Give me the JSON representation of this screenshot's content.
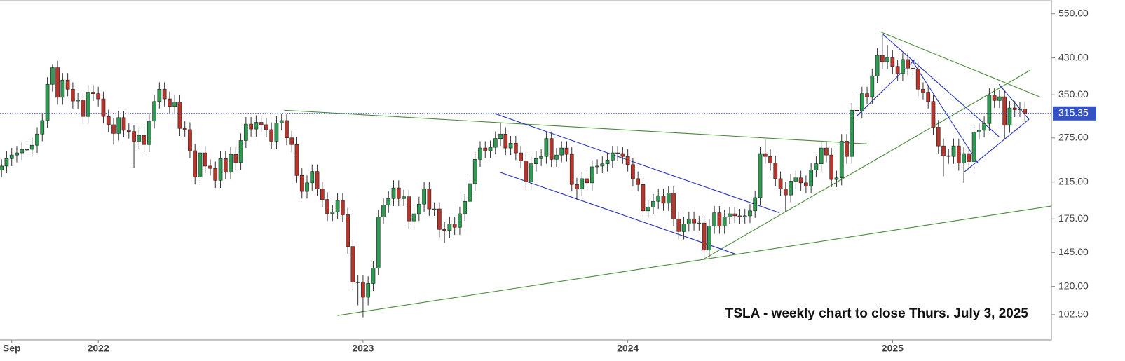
{
  "chart_data": {
    "type": "candlestick",
    "annotation": "TSLA - weekly chart to close Thurs. July 3, 2025",
    "log_scale": true,
    "grid": false,
    "up_color": "#2e9a52",
    "down_color": "#b8352c",
    "last_price": 315.35,
    "last_price_color": "#3452c4",
    "xlim": [
      -0.3,
      206.2
    ],
    "xticks": [
      {
        "value": 2,
        "label": "Sep"
      },
      {
        "value": 19,
        "label": "2022"
      },
      {
        "value": 71,
        "label": "2023"
      },
      {
        "value": 123,
        "label": "2024"
      },
      {
        "value": 175,
        "label": "2025"
      }
    ],
    "ylim": [
      89,
      594
    ],
    "yticks": [
      {
        "value": 102.5,
        "label": "102.50"
      },
      {
        "value": 120,
        "label": "120.00"
      },
      {
        "value": 145,
        "label": "145.00"
      },
      {
        "value": 175,
        "label": "175.00"
      },
      {
        "value": 215,
        "label": "215.00"
      },
      {
        "value": 275,
        "label": "275.00"
      },
      {
        "value": 350,
        "label": "350.00"
      },
      {
        "value": 430,
        "label": "430.00"
      },
      {
        "value": 550,
        "label": "550.00"
      }
    ],
    "ohlc": [
      [
        230,
        244,
        221,
        235
      ],
      [
        235,
        255,
        226,
        245
      ],
      [
        245,
        260,
        235,
        250
      ],
      [
        250,
        263,
        240,
        253
      ],
      [
        253,
        268,
        243,
        258
      ],
      [
        258,
        268,
        248,
        258
      ],
      [
        258,
        275,
        248,
        264
      ],
      [
        264,
        292,
        253,
        281
      ],
      [
        281,
        315,
        270,
        303
      ],
      [
        303,
        386,
        291,
        371
      ],
      [
        371,
        414,
        356,
        407
      ],
      [
        407,
        423,
        331,
        345
      ],
      [
        345,
        395,
        331,
        380
      ],
      [
        380,
        395,
        347,
        361
      ],
      [
        361,
        375,
        324,
        338
      ],
      [
        338,
        354,
        324,
        340
      ],
      [
        340,
        354,
        298,
        310
      ],
      [
        310,
        369,
        298,
        355
      ],
      [
        355,
        369,
        338,
        352
      ],
      [
        352,
        366,
        328,
        342
      ],
      [
        342,
        356,
        298,
        310
      ],
      [
        310,
        322,
        284,
        296
      ],
      [
        296,
        308,
        265,
        282
      ],
      [
        282,
        320,
        271,
        308
      ],
      [
        308,
        320,
        276,
        287
      ],
      [
        287,
        298,
        274,
        285
      ],
      [
        285,
        296,
        233,
        270
      ],
      [
        270,
        290,
        259,
        279
      ],
      [
        279,
        290,
        254,
        265
      ],
      [
        265,
        314,
        254,
        302
      ],
      [
        302,
        350,
        290,
        337
      ],
      [
        337,
        375,
        324,
        361
      ],
      [
        361,
        375,
        328,
        342
      ],
      [
        342,
        356,
        315,
        328
      ],
      [
        328,
        349,
        315,
        336
      ],
      [
        336,
        349,
        278,
        290
      ],
      [
        290,
        302,
        276,
        288
      ],
      [
        288,
        300,
        246,
        256
      ],
      [
        256,
        266,
        212,
        221
      ],
      [
        221,
        263,
        212,
        253
      ],
      [
        253,
        263,
        226,
        235
      ],
      [
        235,
        244,
        223,
        232
      ],
      [
        232,
        241,
        208,
        217
      ],
      [
        217,
        255,
        208,
        245
      ],
      [
        245,
        255,
        218,
        227
      ],
      [
        227,
        261,
        218,
        251
      ],
      [
        251,
        261,
        230,
        240
      ],
      [
        240,
        282,
        230,
        271
      ],
      [
        271,
        309,
        260,
        297
      ],
      [
        297,
        309,
        277,
        289
      ],
      [
        289,
        312,
        277,
        300
      ],
      [
        300,
        312,
        284,
        296
      ],
      [
        296,
        308,
        276,
        288
      ],
      [
        288,
        300,
        259,
        270
      ],
      [
        270,
        311,
        259,
        299
      ],
      [
        299,
        315,
        287,
        303
      ],
      [
        303,
        315,
        264,
        275
      ],
      [
        275,
        286,
        254,
        265
      ],
      [
        265,
        276,
        214,
        223
      ],
      [
        223,
        232,
        196,
        204
      ],
      [
        204,
        223,
        196,
        214
      ],
      [
        214,
        237,
        205,
        228
      ],
      [
        228,
        237,
        199,
        207
      ],
      [
        207,
        215,
        187,
        195
      ],
      [
        195,
        203,
        173,
        180
      ],
      [
        180,
        189,
        173,
        182
      ],
      [
        182,
        202,
        175,
        194
      ],
      [
        194,
        202,
        172,
        179
      ],
      [
        179,
        186,
        144,
        150
      ],
      [
        150,
        156,
        118,
        123
      ],
      [
        123,
        128,
        108,
        123
      ],
      [
        123,
        128,
        101,
        113
      ],
      [
        113,
        127,
        108,
        122
      ],
      [
        122,
        138,
        117,
        133
      ],
      [
        133,
        184,
        128,
        177
      ],
      [
        177,
        197,
        170,
        189
      ],
      [
        189,
        204,
        181,
        196
      ],
      [
        196,
        217,
        188,
        208
      ],
      [
        208,
        217,
        188,
        196
      ],
      [
        196,
        206,
        188,
        198
      ],
      [
        198,
        206,
        166,
        173
      ],
      [
        173,
        187,
        166,
        180
      ],
      [
        180,
        198,
        173,
        190
      ],
      [
        190,
        215,
        182,
        207
      ],
      [
        207,
        215,
        178,
        185
      ],
      [
        185,
        192,
        178,
        185
      ],
      [
        185,
        192,
        158,
        165
      ],
      [
        165,
        172,
        153,
        164
      ],
      [
        164,
        177,
        157,
        170
      ],
      [
        170,
        177,
        160,
        167
      ],
      [
        167,
        187,
        160,
        180
      ],
      [
        180,
        201,
        173,
        193
      ],
      [
        193,
        222,
        185,
        213
      ],
      [
        213,
        254,
        204,
        244
      ],
      [
        244,
        270,
        234,
        260
      ],
      [
        260,
        270,
        246,
        256
      ],
      [
        256,
        271,
        246,
        261
      ],
      [
        261,
        285,
        251,
        274
      ],
      [
        274,
        299,
        263,
        281
      ],
      [
        281,
        292,
        250,
        260
      ],
      [
        260,
        278,
        250,
        267
      ],
      [
        267,
        278,
        243,
        253
      ],
      [
        253,
        263,
        232,
        242
      ],
      [
        242,
        252,
        206,
        215
      ],
      [
        215,
        248,
        206,
        238
      ],
      [
        238,
        255,
        228,
        245
      ],
      [
        245,
        258,
        235,
        248
      ],
      [
        248,
        285,
        238,
        274
      ],
      [
        274,
        285,
        234,
        244
      ],
      [
        244,
        260,
        234,
        250
      ],
      [
        250,
        270,
        240,
        260
      ],
      [
        260,
        270,
        241,
        251
      ],
      [
        251,
        261,
        204,
        212
      ],
      [
        212,
        220,
        194,
        207
      ],
      [
        207,
        228,
        199,
        219
      ],
      [
        219,
        228,
        205,
        214
      ],
      [
        214,
        243,
        205,
        234
      ],
      [
        234,
        244,
        225,
        235
      ],
      [
        235,
        248,
        226,
        238
      ],
      [
        238,
        253,
        228,
        243
      ],
      [
        243,
        263,
        233,
        253
      ],
      [
        253,
        263,
        242,
        252
      ],
      [
        252,
        262,
        238,
        248
      ],
      [
        248,
        258,
        228,
        237
      ],
      [
        237,
        246,
        210,
        219
      ],
      [
        219,
        228,
        204,
        212
      ],
      [
        212,
        220,
        176,
        183
      ],
      [
        183,
        194,
        176,
        187
      ],
      [
        187,
        201,
        180,
        193
      ],
      [
        193,
        207,
        185,
        199
      ],
      [
        199,
        207,
        183,
        191
      ],
      [
        191,
        210,
        183,
        202
      ],
      [
        202,
        210,
        168,
        175
      ],
      [
        175,
        182,
        156,
        163
      ],
      [
        163,
        177,
        156,
        170
      ],
      [
        170,
        182,
        163,
        175
      ],
      [
        175,
        182,
        164,
        171
      ],
      [
        171,
        178,
        164,
        171
      ],
      [
        171,
        178,
        138,
        147
      ],
      [
        147,
        175,
        141,
        168
      ],
      [
        168,
        188,
        161,
        181
      ],
      [
        181,
        188,
        161,
        168
      ],
      [
        168,
        184,
        161,
        177
      ],
      [
        177,
        187,
        170,
        180
      ],
      [
        180,
        187,
        171,
        178
      ],
      [
        178,
        185,
        170,
        177
      ],
      [
        177,
        185,
        170,
        178
      ],
      [
        178,
        190,
        171,
        183
      ],
      [
        183,
        205,
        176,
        197
      ],
      [
        197,
        262,
        189,
        252
      ],
      [
        252,
        272,
        238,
        248
      ],
      [
        248,
        258,
        229,
        239
      ],
      [
        239,
        249,
        210,
        219
      ],
      [
        219,
        228,
        199,
        207
      ],
      [
        207,
        215,
        182,
        200
      ],
      [
        200,
        225,
        192,
        216
      ],
      [
        216,
        229,
        207,
        220
      ],
      [
        220,
        229,
        205,
        214
      ],
      [
        214,
        223,
        202,
        210
      ],
      [
        210,
        239,
        202,
        230
      ],
      [
        230,
        248,
        221,
        238
      ],
      [
        238,
        270,
        228,
        260
      ],
      [
        260,
        270,
        240,
        250
      ],
      [
        250,
        260,
        209,
        218
      ],
      [
        218,
        229,
        209,
        220
      ],
      [
        220,
        281,
        211,
        270
      ],
      [
        270,
        281,
        238,
        248
      ],
      [
        248,
        334,
        238,
        321
      ],
      [
        321,
        358,
        307,
        320
      ],
      [
        320,
        366,
        307,
        352
      ],
      [
        352,
        366,
        332,
        346
      ],
      [
        346,
        405,
        332,
        389
      ],
      [
        389,
        454,
        373,
        436
      ],
      [
        436,
        488,
        404,
        421
      ],
      [
        421,
        462,
        404,
        431
      ],
      [
        431,
        448,
        394,
        410
      ],
      [
        410,
        426,
        378,
        394
      ],
      [
        394,
        443,
        378,
        426
      ],
      [
        426,
        443,
        390,
        406
      ],
      [
        406,
        422,
        388,
        404
      ],
      [
        404,
        420,
        347,
        361
      ],
      [
        361,
        375,
        341,
        355
      ],
      [
        355,
        369,
        324,
        337
      ],
      [
        337,
        350,
        280,
        292
      ],
      [
        292,
        304,
        252,
        263
      ],
      [
        263,
        274,
        222,
        249
      ],
      [
        249,
        259,
        238,
        248
      ],
      [
        248,
        274,
        238,
        263
      ],
      [
        263,
        274,
        229,
        239
      ],
      [
        239,
        262,
        214,
        252
      ],
      [
        252,
        262,
        231,
        241
      ],
      [
        241,
        295,
        231,
        284
      ],
      [
        284,
        298,
        273,
        287
      ],
      [
        287,
        310,
        276,
        298
      ],
      [
        298,
        363,
        286,
        349
      ],
      [
        349,
        363,
        325,
        339
      ],
      [
        339,
        360,
        325,
        346
      ],
      [
        346,
        360,
        273,
        295
      ],
      [
        295,
        338,
        283,
        325
      ],
      [
        325,
        338,
        309,
        322
      ],
      [
        322,
        336,
        309,
        323
      ],
      [
        323,
        336,
        303,
        315.35
      ]
    ],
    "trendlines": [
      {
        "color": "#4a8a3a",
        "points": [
          [
            66,
            102
          ],
          [
            206.2,
            188
          ]
        ]
      },
      {
        "color": "#4a8a3a",
        "points": [
          [
            55.5,
            321
          ],
          [
            170,
            266
          ]
        ]
      },
      {
        "color": "#4a8a3a",
        "points": [
          [
            138,
            140
          ],
          [
            202,
            401
          ]
        ]
      },
      {
        "color": "#4a8a3a",
        "points": [
          [
            172.5,
            498
          ],
          [
            203.9,
            346
          ]
        ]
      },
      {
        "color": "#2233bb",
        "points": [
          [
            96.9,
            315
          ],
          [
            152.8,
            181
          ]
        ]
      },
      {
        "color": "#2233bb",
        "points": [
          [
            97.9,
            227
          ],
          [
            144,
            144
          ]
        ]
      },
      {
        "color": "#2233bb",
        "points": [
          [
            172.9,
            493
          ],
          [
            195.9,
            277
          ]
        ]
      },
      {
        "color": "#2233bb",
        "points": [
          [
            168,
            311
          ],
          [
            179.4,
            426
          ]
        ]
      },
      {
        "color": "#2233bb",
        "points": [
          [
            178.7,
            426
          ],
          [
            191.8,
            239
          ]
        ]
      },
      {
        "color": "#2233bb",
        "points": [
          [
            189,
            227
          ],
          [
            201.8,
            305
          ]
        ]
      },
      {
        "color": "#2233bb",
        "points": [
          [
            195.9,
            371
          ],
          [
            201.8,
            305
          ]
        ]
      }
    ]
  }
}
